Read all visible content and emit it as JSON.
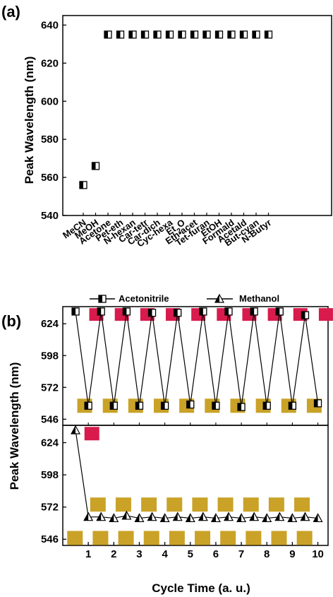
{
  "panel_labels": {
    "a": "(a)",
    "b": "(b)"
  },
  "chart_data": [
    {
      "panel": "(a)",
      "type": "scatter",
      "ylabel": "Peak Wavelength (nm)",
      "xlabel": "",
      "ylim": [
        540,
        645
      ],
      "yticks": [
        540,
        560,
        580,
        600,
        620,
        640
      ],
      "categories": [
        "MeCN",
        "MeOH",
        "Acetone",
        "Pet-eth",
        "N-hexan",
        "Car-tetr",
        "Car-dich",
        "Cyc-hexa",
        "Et2O",
        "Eth-acet",
        "Tet-furan",
        "EtOH",
        "Formald",
        "Acetald",
        "But-cyan",
        "N-Butyr"
      ],
      "values": [
        556,
        566,
        635,
        635,
        635,
        635,
        635,
        635,
        635,
        635,
        635,
        635,
        635,
        635,
        635,
        635
      ],
      "marker": "half-filled square"
    },
    {
      "panel": "(b)",
      "type": "line",
      "ylabel": "Peak Wavelength (nm)",
      "xlabel": "Cycle Time (a. u.)",
      "xlim": [
        0,
        10.4
      ],
      "xticks": [
        1,
        2,
        3,
        4,
        5,
        6,
        7,
        8,
        9,
        10
      ],
      "ylim": [
        541,
        638
      ],
      "yticks": [
        546,
        572,
        598,
        624
      ],
      "legend": [
        "Acetonitrile",
        "Methanol"
      ],
      "legend_position": "top",
      "series": [
        {
          "name": "Acetonitrile",
          "marker": "half-filled square",
          "x": [
            0.5,
            1,
            1.5,
            2,
            2.5,
            3,
            3.5,
            4,
            4.5,
            5,
            5.5,
            6,
            6.5,
            7,
            7.5,
            8,
            8.5,
            9,
            9.5,
            10
          ],
          "values": [
            634,
            557,
            634,
            557,
            634,
            557,
            633,
            557,
            633,
            558,
            634,
            557,
            634,
            556,
            634,
            557,
            634,
            557,
            631,
            559
          ]
        },
        {
          "name": "Methanol",
          "marker": "half-filled triangle",
          "x": [
            0.5,
            1,
            1.5,
            2,
            2.5,
            3,
            3.5,
            4,
            4.5,
            5,
            5.5,
            6,
            6.5,
            7,
            7.5,
            8,
            8.5,
            9,
            9.5,
            10
          ],
          "values": [
            634,
            564,
            564,
            563,
            565,
            563,
            564,
            563,
            564,
            563,
            564,
            563,
            564,
            563,
            564,
            563,
            564,
            563,
            564,
            563
          ]
        }
      ],
      "swatches": {
        "red": "#d81b4c",
        "gold": "#c9a227"
      }
    }
  ],
  "colors": {
    "axis": "#000000",
    "marker_fill": "#000000",
    "marker_empty": "#ffffff"
  }
}
